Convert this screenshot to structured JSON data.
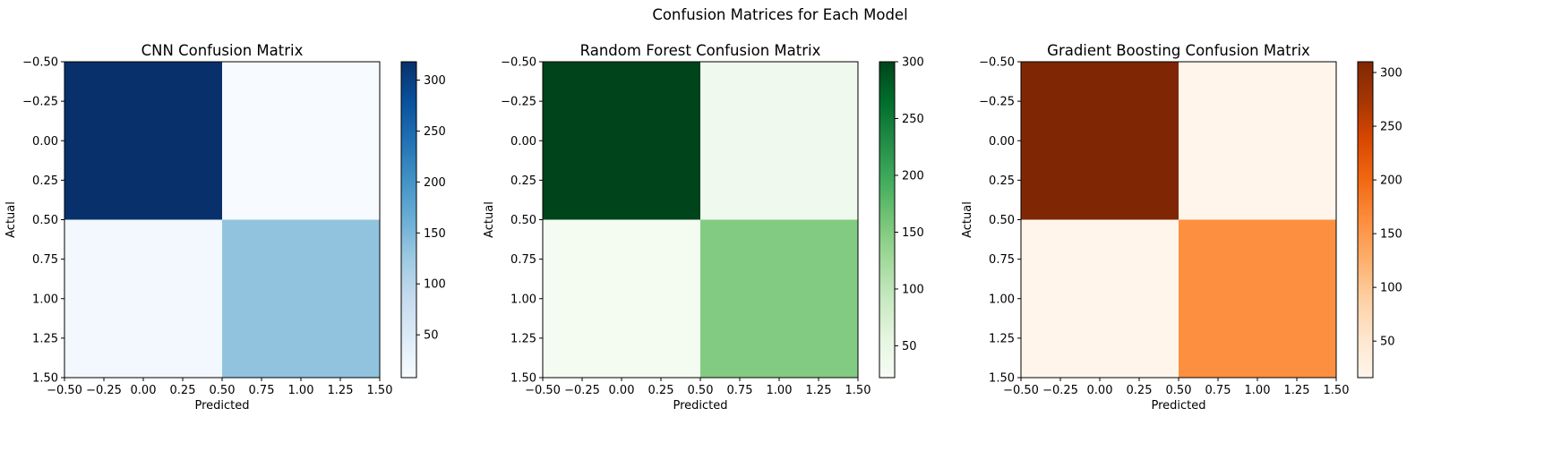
{
  "figure": {
    "suptitle": "Confusion Matrices for Each Model"
  },
  "chart_data": [
    {
      "type": "heatmap",
      "title": "CNN Confusion Matrix",
      "xlabel": "Predicted",
      "ylabel": "Actual",
      "xlim": [
        -0.5,
        1.5
      ],
      "ylim": [
        1.5,
        -0.5
      ],
      "x_ticks": [
        "−0.50",
        "−0.25",
        "0.00",
        "0.25",
        "0.50",
        "0.75",
        "1.00",
        "1.25",
        "1.50"
      ],
      "y_ticks": [
        "−0.50",
        "−0.25",
        "0.00",
        "0.25",
        "0.50",
        "0.75",
        "1.00",
        "1.25",
        "1.50"
      ],
      "matrix": [
        [
          318,
          8
        ],
        [
          16,
          134
        ]
      ],
      "colormap": "Blues",
      "colorbar": {
        "min": 8,
        "max": 318,
        "ticks": [
          50,
          100,
          150,
          200,
          250,
          300
        ]
      },
      "grid": false
    },
    {
      "type": "heatmap",
      "title": "Random Forest Confusion Matrix",
      "xlabel": "Predicted",
      "ylabel": "Actual",
      "xlim": [
        -0.5,
        1.5
      ],
      "ylim": [
        1.5,
        -0.5
      ],
      "x_ticks": [
        "−0.50",
        "−0.25",
        "0.00",
        "0.25",
        "0.50",
        "0.75",
        "1.00",
        "1.25",
        "1.50"
      ],
      "y_ticks": [
        "−0.50",
        "−0.25",
        "0.00",
        "0.25",
        "0.50",
        "0.75",
        "1.00",
        "1.25",
        "1.50"
      ],
      "matrix": [
        [
          300,
          36
        ],
        [
          28,
          150
        ]
      ],
      "colormap": "Greens",
      "colorbar": {
        "min": 22,
        "max": 300,
        "ticks": [
          50,
          100,
          150,
          200,
          250,
          300
        ]
      },
      "grid": false
    },
    {
      "type": "heatmap",
      "title": "Gradient Boosting Confusion Matrix",
      "xlabel": "Predicted",
      "ylabel": "Actual",
      "xlim": [
        -0.5,
        1.5
      ],
      "ylim": [
        1.5,
        -0.5
      ],
      "x_ticks": [
        "−0.50",
        "−0.25",
        "0.00",
        "0.25",
        "0.50",
        "0.75",
        "1.00",
        "1.25",
        "1.50"
      ],
      "y_ticks": [
        "−0.50",
        "−0.25",
        "0.00",
        "0.25",
        "0.50",
        "0.75",
        "1.00",
        "1.25",
        "1.50"
      ],
      "matrix": [
        [
          310,
          16
        ],
        [
          16,
          160
        ]
      ],
      "colormap": "Oranges",
      "colorbar": {
        "min": 16,
        "max": 310,
        "ticks": [
          50,
          100,
          150,
          200,
          250,
          300
        ]
      },
      "grid": false
    }
  ]
}
